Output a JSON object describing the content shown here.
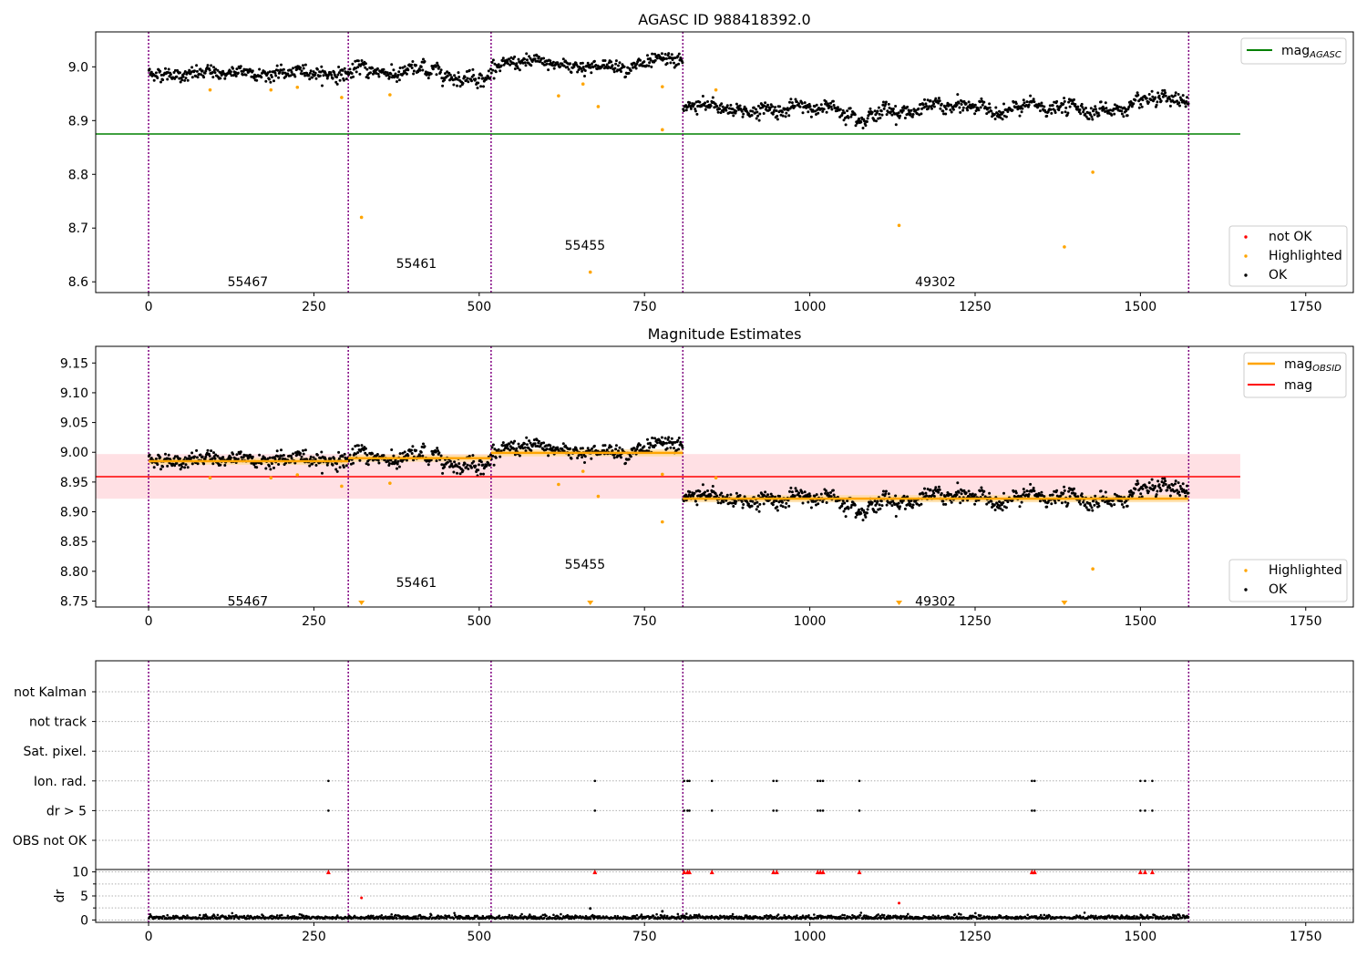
{
  "figure": {
    "title_top": "AGASC ID 988418392.0",
    "title_mid": "Magnitude Estimates"
  },
  "colors": {
    "ok": "#000000",
    "highlighted": "#ffa500",
    "not_ok": "#ff0000",
    "agasc_line": "#008000",
    "mag_line": "#ff0000",
    "mag_band": "#ffe0e4",
    "obs_line": "#ffa500",
    "obs_band": "#ffdca0",
    "boundary": "#800080",
    "grid": "#b0b0b0"
  },
  "chart_data": [
    {
      "type": "scatter",
      "title": "AGASC ID 988418392.0",
      "xlim": [
        -80,
        1822
      ],
      "ylim": [
        8.58,
        9.065
      ],
      "xticks": [
        0,
        250,
        500,
        750,
        1000,
        1250,
        1500,
        1750
      ],
      "yticks": [
        8.6,
        8.7,
        8.8,
        8.9,
        9.0
      ],
      "ytick_labels": [
        "8.6",
        "8.7",
        "8.8",
        "8.9",
        "9.0"
      ],
      "boundaries": [
        0,
        302,
        518,
        808,
        1573
      ],
      "agasc_mag": 8.875,
      "agasc_xrange": [
        -80,
        1651
      ],
      "obs_labels": [
        {
          "text": "55467",
          "x": 150,
          "y": 8.6
        },
        {
          "text": "55461",
          "x": 405,
          "y": 8.634
        },
        {
          "text": "55455",
          "x": 660,
          "y": 8.668
        },
        {
          "text": "49302",
          "x": 1190,
          "y": 8.6
        }
      ],
      "ok_segments": [
        {
          "x0": 0,
          "x1": 302,
          "mean": 8.988,
          "noise": 0.006,
          "wave": 0.004
        },
        {
          "x0": 302,
          "x1": 518,
          "mean": 8.991,
          "noise": 0.006,
          "wave": 0.009
        },
        {
          "x0": 518,
          "x1": 808,
          "mean": 9.003,
          "noise": 0.006,
          "wave": 0.005
        },
        {
          "x0": 808,
          "x1": 1573,
          "mean": 8.922,
          "noise": 0.006,
          "wave": 0.008
        }
      ],
      "highlighted": [
        {
          "x": 93,
          "y": 8.957
        },
        {
          "x": 185,
          "y": 8.957
        },
        {
          "x": 225,
          "y": 8.962
        },
        {
          "x": 292,
          "y": 8.943
        },
        {
          "x": 322,
          "y": 8.72
        },
        {
          "x": 365,
          "y": 8.948
        },
        {
          "x": 620,
          "y": 8.946
        },
        {
          "x": 657,
          "y": 8.968
        },
        {
          "x": 668,
          "y": 8.618
        },
        {
          "x": 680,
          "y": 8.926
        },
        {
          "x": 777,
          "y": 8.963
        },
        {
          "x": 777,
          "y": 8.883
        },
        {
          "x": 858,
          "y": 8.957
        },
        {
          "x": 1135,
          "y": 8.705
        },
        {
          "x": 1385,
          "y": 8.665
        },
        {
          "x": 1428,
          "y": 8.804
        }
      ],
      "legend_top": [
        "mag_AGASC"
      ],
      "legend_bottom": [
        "not OK",
        "Highlighted",
        "OK"
      ]
    },
    {
      "type": "scatter",
      "title": "Magnitude Estimates",
      "xlim": [
        -80,
        1822
      ],
      "ylim": [
        8.74,
        9.178
      ],
      "xticks": [
        0,
        250,
        500,
        750,
        1000,
        1250,
        1500,
        1750
      ],
      "yticks": [
        8.75,
        8.8,
        8.85,
        8.9,
        8.95,
        9.0,
        9.05,
        9.1,
        9.15
      ],
      "ytick_labels": [
        "8.75",
        "8.80",
        "8.85",
        "8.90",
        "8.95",
        "9.00",
        "9.05",
        "9.10",
        "9.15"
      ],
      "boundaries": [
        0,
        302,
        518,
        808,
        1573
      ],
      "mag": 8.959,
      "mag_band": [
        8.922,
        8.997
      ],
      "mag_xrange": [
        -80,
        1651
      ],
      "obs_mags": [
        {
          "x0": 0,
          "x1": 302,
          "mag": 8.985
        },
        {
          "x0": 302,
          "x1": 518,
          "mag": 8.99
        },
        {
          "x0": 518,
          "x1": 808,
          "mag": 8.999
        },
        {
          "x0": 808,
          "x1": 1573,
          "mag": 8.922
        }
      ],
      "obs_labels": [
        {
          "text": "55467",
          "x": 150,
          "y": 8.75
        },
        {
          "text": "55461",
          "x": 405,
          "y": 8.781
        },
        {
          "text": "55455",
          "x": 660,
          "y": 8.812
        },
        {
          "text": "49302",
          "x": 1190,
          "y": 8.75
        }
      ],
      "below_range_markers": [
        322,
        668,
        1135,
        1385
      ],
      "legend_top": [
        "mag_OBSID",
        "mag"
      ],
      "legend_bottom": [
        "Highlighted",
        "OK"
      ]
    },
    {
      "type": "scatter",
      "title": "",
      "flag_categories": [
        "not Kalman",
        "not track",
        "Sat. pixel.",
        "Ion. rad.",
        "dr > 5",
        "OBS not OK"
      ],
      "ion_rad_x": [
        272,
        675,
        810,
        815,
        818,
        852,
        945,
        950,
        1012,
        1016,
        1020,
        1075,
        1336,
        1340,
        1500,
        1507,
        1518
      ],
      "dr_gt5_x": [
        272,
        675,
        810,
        815,
        818,
        852,
        945,
        950,
        1012,
        1016,
        1020,
        1075,
        1336,
        1340,
        1500,
        1507,
        1518
      ],
      "dr_ylim": [
        -0.5,
        10.5
      ],
      "dr_yticks": [
        0,
        5,
        10
      ],
      "dr_ylabel": "dr",
      "dr_clipped_x": [
        272,
        675,
        810,
        815,
        818,
        852,
        945,
        950,
        1012,
        1016,
        1020,
        1075,
        1336,
        1340,
        1500,
        1507,
        1518
      ],
      "dr_outliers": [
        {
          "x": 322,
          "y": 4.6
        },
        {
          "x": 668,
          "y": 2.4
        },
        {
          "x": 777,
          "y": 1.8
        },
        {
          "x": 1135,
          "y": 3.5
        }
      ],
      "boundaries": [
        0,
        302,
        518,
        808,
        1573
      ],
      "xticks": [
        0,
        250,
        500,
        750,
        1000,
        1250,
        1500,
        1750
      ],
      "xlim": [
        -80,
        1822
      ]
    }
  ],
  "legends": {
    "top_line": {
      "base": "mag",
      "sub": "AGASC"
    },
    "mid_line1": {
      "base": "mag",
      "sub": "OBSID"
    },
    "mid_line2": "mag",
    "not_ok": "not OK",
    "highlighted": "Highlighted",
    "ok": "OK"
  }
}
